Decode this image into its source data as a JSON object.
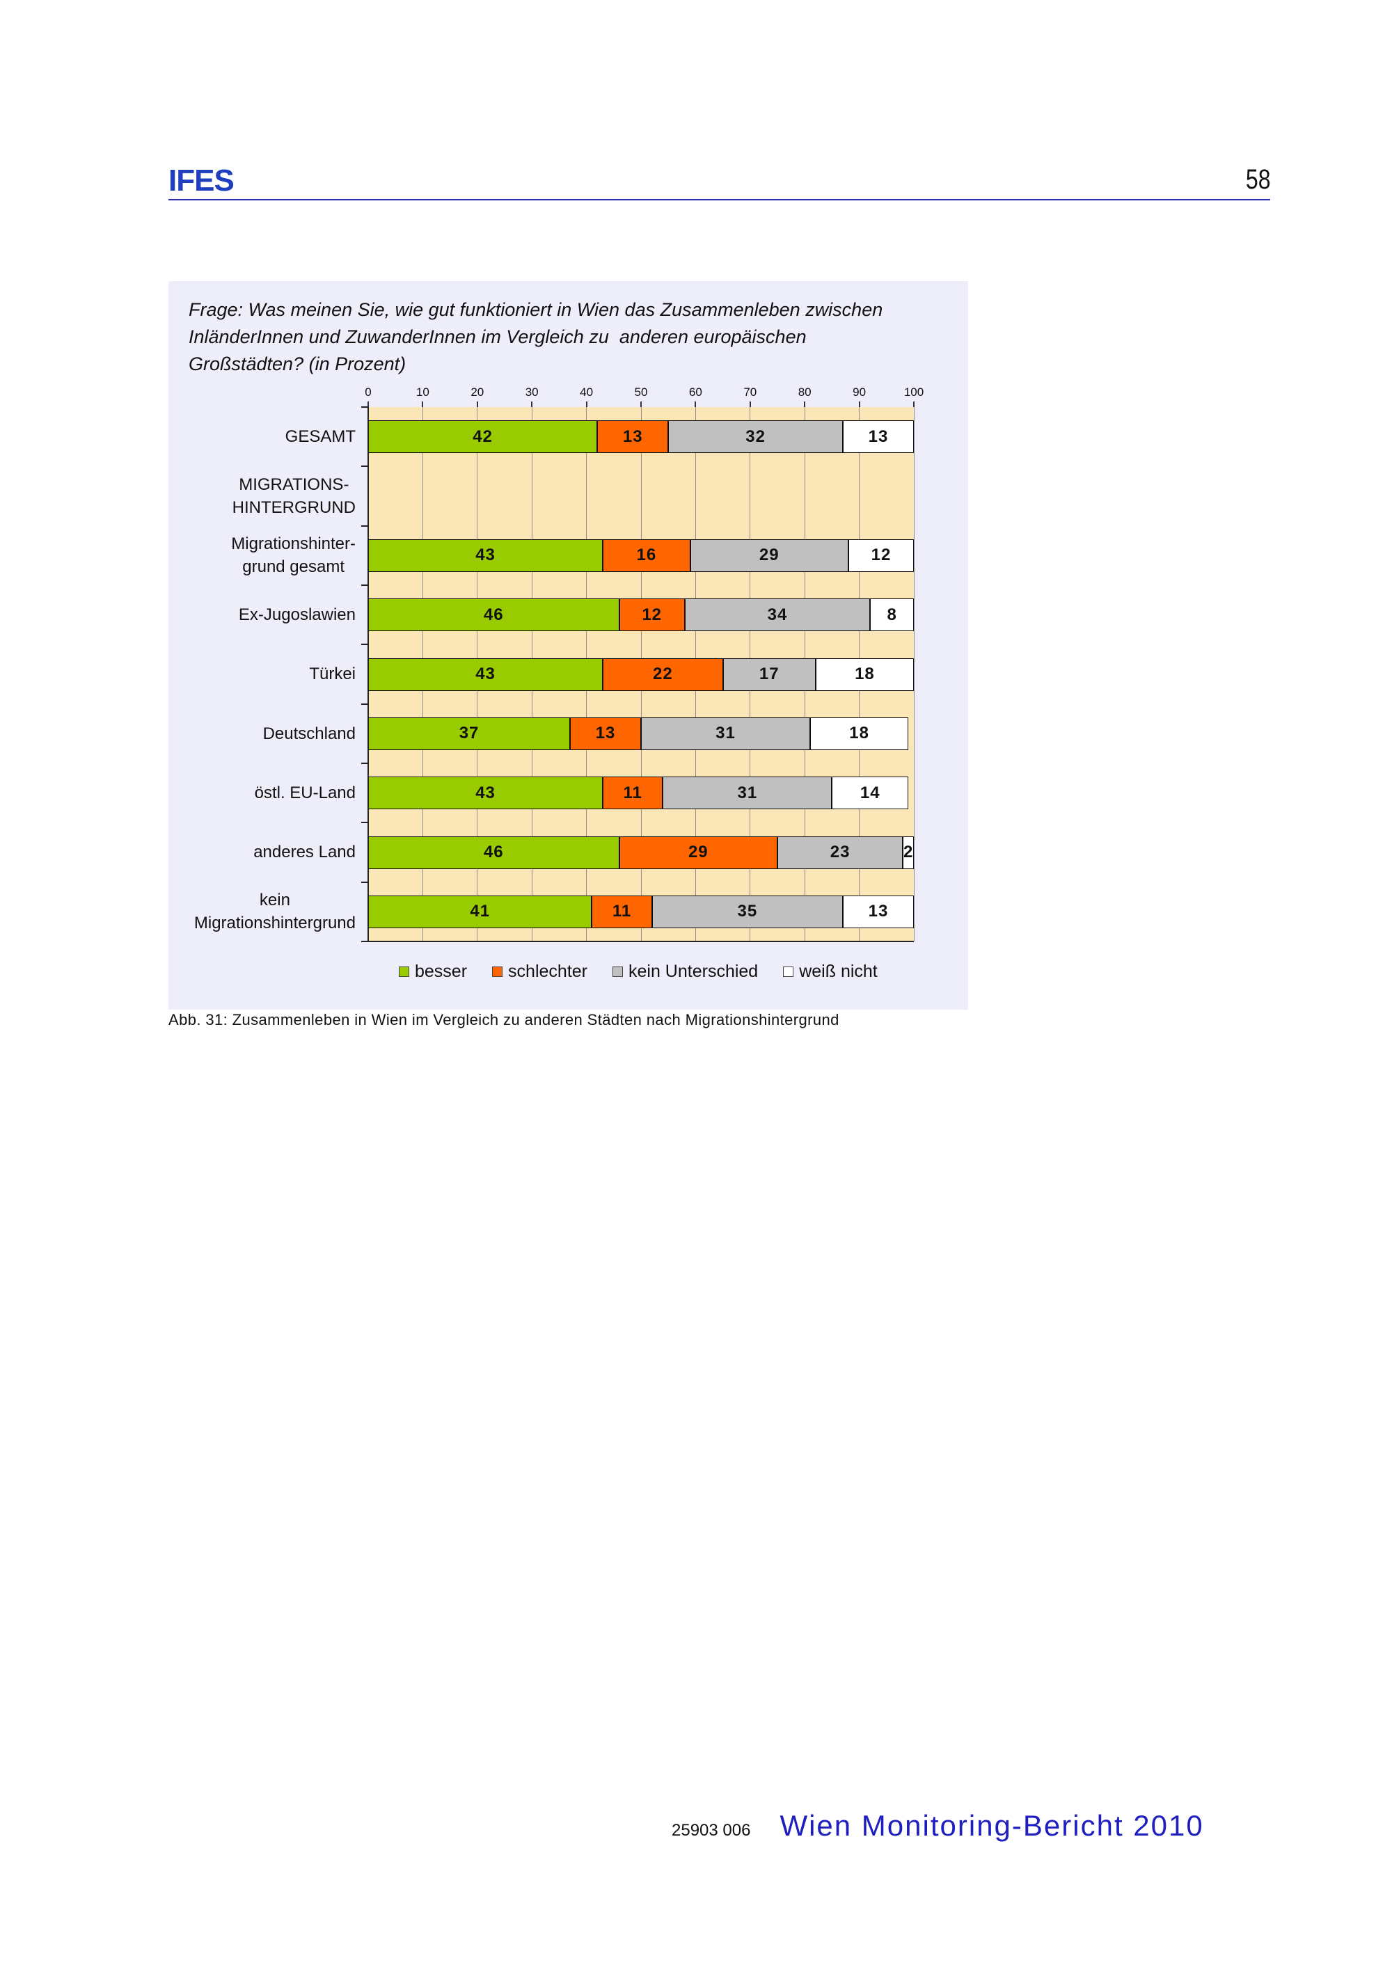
{
  "header": {
    "logo": "IFES",
    "page_number": "58"
  },
  "chart_data": {
    "type": "bar",
    "orientation": "horizontal",
    "stacked": true,
    "title": "Frage: Was meinen Sie, wie gut funktioniert in Wien das Zusammenleben zwischen\nInländerInnen und ZuwanderInnen im Vergleich zu  anderen europäischen\nGroßstädten? (in Prozent)",
    "xlim": [
      0,
      100
    ],
    "xticks": [
      0,
      10,
      20,
      30,
      40,
      50,
      60,
      70,
      80,
      90,
      100
    ],
    "x_axis_position": "top",
    "grid": true,
    "legend_position": "bottom",
    "categories": [
      "GESAMT",
      "MIGRATIONS-\nHINTERGRUND",
      "Migrationshinter-\ngrund gesamt",
      "Ex-Jugoslawien",
      "Türkei",
      "Deutschland",
      "östl. EU-Land",
      "anderes Land",
      "kein\nMigrationshintergrund"
    ],
    "series": [
      {
        "name": "besser",
        "color": "#99CC00",
        "values": [
          42,
          null,
          43,
          46,
          43,
          37,
          43,
          46,
          41
        ]
      },
      {
        "name": "schlechter",
        "color": "#FF6600",
        "values": [
          13,
          null,
          16,
          12,
          22,
          13,
          11,
          29,
          11
        ]
      },
      {
        "name": "kein Unterschied",
        "color": "#C0C0C0",
        "values": [
          32,
          null,
          29,
          34,
          17,
          31,
          31,
          23,
          35
        ]
      },
      {
        "name": "weiß nicht",
        "color": "#FFFFFF",
        "values": [
          13,
          null,
          12,
          8,
          18,
          18,
          14,
          2,
          13
        ]
      }
    ]
  },
  "caption": "Abb. 31: Zusammenleben in Wien im Vergleich zu anderen Städten nach Migrationshintergrund",
  "footer": {
    "code": "25903 006",
    "title": "Wien Monitoring-Bericht 2010"
  },
  "colors": {
    "brand_blue": "#1f3fbf",
    "footer_blue": "#1f1fbf",
    "panel_background": "#eeeefb",
    "plot_background": "#fbe6b7"
  }
}
